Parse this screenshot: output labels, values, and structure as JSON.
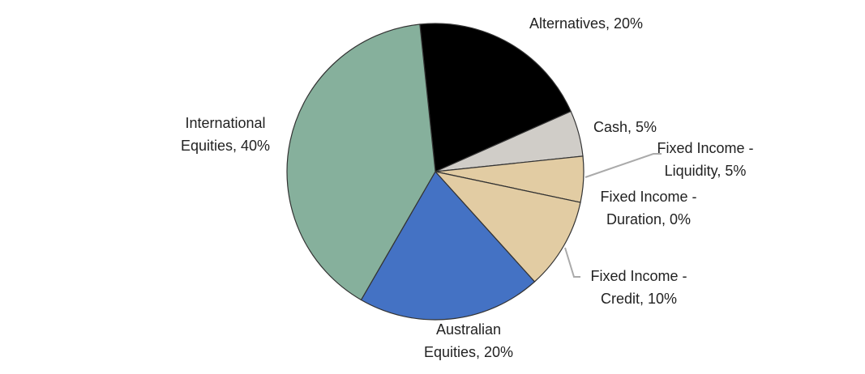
{
  "chart_data": {
    "type": "pie",
    "values": [
      20,
      5,
      5,
      0,
      10,
      20,
      40
    ],
    "value_labels": [
      [
        "Alternatives, 20%"
      ],
      [
        "Cash, 5%"
      ],
      [
        "Fixed Income -",
        "Liquidity, 5%"
      ],
      [
        "Fixed Income -",
        "Duration, 0%"
      ],
      [
        "Fixed Income -",
        "Credit, 10%"
      ],
      [
        "Australian",
        "Equities, 20%"
      ],
      [
        "International",
        "Equities, 40%"
      ]
    ],
    "colors": [
      "#000000",
      "#d0cdc8",
      "#e2cca3",
      "#e2cca3",
      "#e2cca3",
      "#4472c4",
      "#86b09c"
    ]
  }
}
